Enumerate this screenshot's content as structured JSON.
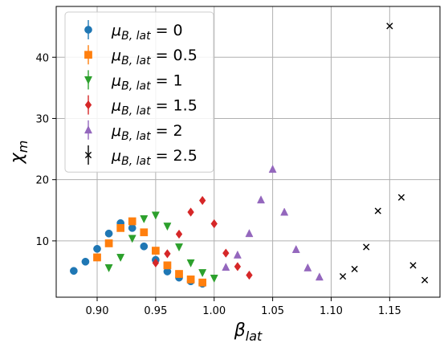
{
  "chart_data": {
    "type": "scatter",
    "xlabel": "β",
    "xlabel_sub": "lat",
    "ylabel": "χ",
    "ylabel_sub": "m",
    "xlim": [
      0.865,
      1.193
    ],
    "ylim": [
      0.8,
      48.3
    ],
    "xticks": [
      0.9,
      0.95,
      1.0,
      1.05,
      1.1,
      1.15
    ],
    "xtick_labels": [
      "0.90",
      "0.95",
      "1.00",
      "1.05",
      "1.10",
      "1.15"
    ],
    "yticks": [
      10,
      20,
      30,
      40
    ],
    "ytick_labels": [
      "10",
      "20",
      "30",
      "40"
    ],
    "grid": true,
    "legend_position": "top-left",
    "series": [
      {
        "name": "μB, lat = 0",
        "label_main": "μ",
        "label_sub": "B, lat",
        "label_value": " = 0",
        "color": "#1f77b4",
        "marker": "circle",
        "points": [
          [
            0.88,
            5.1
          ],
          [
            0.89,
            6.6
          ],
          [
            0.9,
            8.7
          ],
          [
            0.91,
            11.2
          ],
          [
            0.92,
            12.9
          ],
          [
            0.93,
            12.1
          ],
          [
            0.94,
            9.1
          ],
          [
            0.95,
            6.9
          ],
          [
            0.96,
            5.0
          ],
          [
            0.97,
            4.0
          ],
          [
            0.98,
            3.4
          ],
          [
            0.99,
            3.0
          ]
        ]
      },
      {
        "name": "μB, lat = 0.5",
        "label_main": "μ",
        "label_sub": "B, lat",
        "label_value": " = 0.5",
        "color": "#ff7f0e",
        "marker": "square",
        "points": [
          [
            0.9,
            7.3
          ],
          [
            0.91,
            9.6
          ],
          [
            0.92,
            12.1
          ],
          [
            0.93,
            13.2
          ],
          [
            0.94,
            11.4
          ],
          [
            0.95,
            8.4
          ],
          [
            0.96,
            6.0
          ],
          [
            0.97,
            4.6
          ],
          [
            0.98,
            3.7
          ],
          [
            0.99,
            3.2
          ]
        ]
      },
      {
        "name": "μB, lat = 1",
        "label_main": "μ",
        "label_sub": "B, lat",
        "label_value": " = 1",
        "color": "#2ca02c",
        "marker": "triangle-down",
        "points": [
          [
            0.91,
            5.6
          ],
          [
            0.92,
            7.3
          ],
          [
            0.93,
            10.4
          ],
          [
            0.94,
            13.6
          ],
          [
            0.95,
            14.2
          ],
          [
            0.96,
            12.4
          ],
          [
            0.97,
            9.0
          ],
          [
            0.98,
            6.4
          ],
          [
            0.99,
            4.8
          ],
          [
            1.0,
            3.9
          ]
        ]
      },
      {
        "name": "μB, lat = 1.5",
        "label_main": "μ",
        "label_sub": "B, lat",
        "label_value": " = 1.5",
        "color": "#d62728",
        "marker": "diamond",
        "points": [
          [
            0.95,
            6.4
          ],
          [
            0.96,
            7.9
          ],
          [
            0.97,
            11.1
          ],
          [
            0.98,
            14.7
          ],
          [
            0.99,
            16.6
          ],
          [
            1.0,
            12.8
          ],
          [
            1.01,
            8.0
          ],
          [
            1.02,
            5.8
          ],
          [
            1.03,
            4.4
          ]
        ]
      },
      {
        "name": "μB, lat = 2",
        "label_main": "μ",
        "label_sub": "B, lat",
        "label_value": " = 2",
        "color": "#9467bd",
        "marker": "triangle-up",
        "points": [
          [
            1.01,
            5.7
          ],
          [
            1.02,
            7.7
          ],
          [
            1.03,
            11.2
          ],
          [
            1.04,
            16.7
          ],
          [
            1.05,
            21.7
          ],
          [
            1.06,
            14.7
          ],
          [
            1.07,
            8.6
          ],
          [
            1.08,
            5.6
          ],
          [
            1.09,
            4.1
          ]
        ]
      },
      {
        "name": "μB, lat = 2.5",
        "label_main": "μ",
        "label_sub": "B, lat",
        "label_value": " = 2.5",
        "color": "#000000",
        "marker": "x",
        "points": [
          [
            1.11,
            4.2
          ],
          [
            1.12,
            5.4
          ],
          [
            1.13,
            9.0
          ],
          [
            1.14,
            14.9
          ],
          [
            1.15,
            45.1
          ],
          [
            1.16,
            17.1
          ],
          [
            1.17,
            6.0
          ],
          [
            1.18,
            3.6
          ]
        ]
      }
    ]
  }
}
